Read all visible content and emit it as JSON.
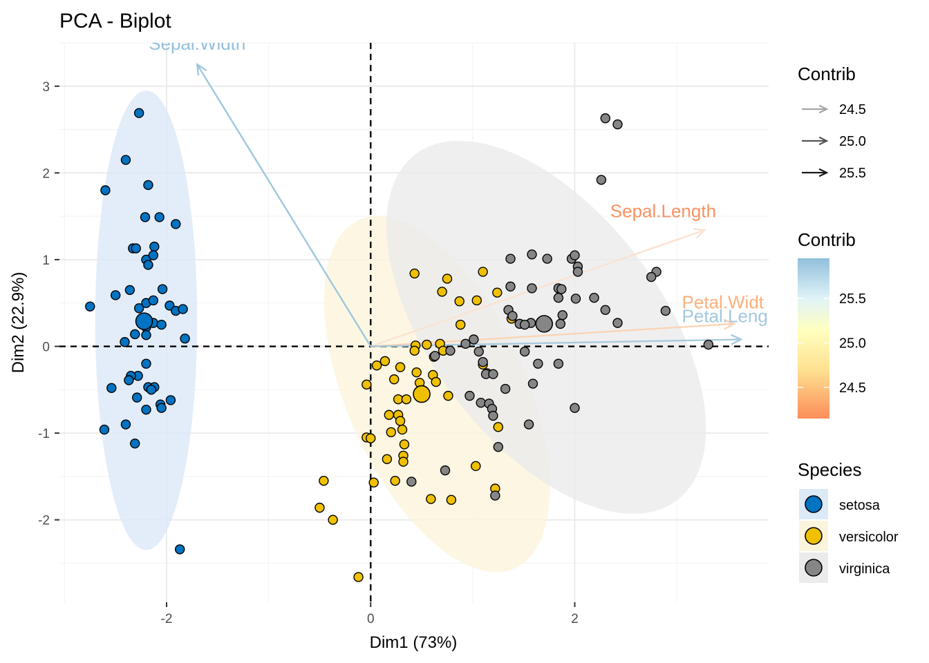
{
  "chart_data": {
    "type": "scatter",
    "title": "PCA - Biplot",
    "xlabel": "Dim1 (73%)",
    "ylabel": "Dim2 (22.9%)",
    "xlim": [
      -3.05,
      3.9
    ],
    "ylim": [
      -2.95,
      3.5
    ],
    "x_ticks": [
      {
        "value": -2,
        "label": "-2"
      },
      {
        "value": 0,
        "label": "0"
      },
      {
        "value": 2,
        "label": "2"
      }
    ],
    "y_ticks": [
      {
        "value": -2,
        "label": "-2"
      },
      {
        "value": -1,
        "label": "-1"
      },
      {
        "value": 0,
        "label": "0"
      },
      {
        "value": 1,
        "label": "1"
      },
      {
        "value": 2,
        "label": "2"
      },
      {
        "value": 3,
        "label": "3"
      }
    ],
    "grid": true,
    "reference_lines": {
      "x": 0,
      "y": 0,
      "style": "dashed"
    },
    "series": [
      {
        "name": "setosa",
        "color": "#0073C2",
        "centroid": [
          -2.22,
          0.29
        ],
        "ellipse": {
          "cx": -2.2,
          "cy": 0.3,
          "rx": 0.5,
          "ry": 2.65,
          "angle": 0,
          "fill": "#dce9f7"
        },
        "points": [
          [
            -2.27,
            2.69
          ],
          [
            -2.4,
            2.15
          ],
          [
            -2.6,
            1.8
          ],
          [
            -2.18,
            1.86
          ],
          [
            -2.21,
            1.49
          ],
          [
            -2.07,
            1.49
          ],
          [
            -1.91,
            1.41
          ],
          [
            -2.33,
            1.13
          ],
          [
            -2.3,
            1.13
          ],
          [
            -2.12,
            1.15
          ],
          [
            -2.2,
            1.0
          ],
          [
            -2.13,
            1.05
          ],
          [
            -2.18,
            0.94
          ],
          [
            -2.75,
            0.46
          ],
          [
            -2.5,
            0.59
          ],
          [
            -2.36,
            0.65
          ],
          [
            -2.04,
            0.66
          ],
          [
            -2.27,
            0.44
          ],
          [
            -2.2,
            0.5
          ],
          [
            -2.13,
            0.53
          ],
          [
            -1.97,
            0.47
          ],
          [
            -1.91,
            0.41
          ],
          [
            -1.84,
            0.43
          ],
          [
            -2.24,
            0.29
          ],
          [
            -2.25,
            0.3
          ],
          [
            -2.2,
            0.26
          ],
          [
            -2.13,
            0.27
          ],
          [
            -2.05,
            0.25
          ],
          [
            -2.2,
            0.22
          ],
          [
            -2.31,
            0.14
          ],
          [
            -2.2,
            0.13
          ],
          [
            -2.41,
            0.05
          ],
          [
            -1.82,
            0.09
          ],
          [
            -2.2,
            -0.2
          ],
          [
            -2.28,
            -0.34
          ],
          [
            -2.35,
            -0.34
          ],
          [
            -2.37,
            -0.39
          ],
          [
            -2.18,
            -0.47
          ],
          [
            -2.12,
            -0.47
          ],
          [
            -2.54,
            -0.48
          ],
          [
            -2.15,
            -0.5
          ],
          [
            -2.29,
            -0.59
          ],
          [
            -2.06,
            -0.67
          ],
          [
            -1.96,
            -0.62
          ],
          [
            -2.05,
            -0.71
          ],
          [
            -2.2,
            -0.73
          ],
          [
            -2.4,
            -0.9
          ],
          [
            -2.61,
            -0.96
          ],
          [
            -2.31,
            -1.12
          ],
          [
            -1.87,
            -2.34
          ]
        ]
      },
      {
        "name": "versicolor",
        "color": "#EFC000",
        "centroid": [
          0.5,
          -0.55
        ],
        "ellipse": {
          "cx": 0.65,
          "cy": -0.55,
          "rx": 0.88,
          "ry": 2.2,
          "angle": 24,
          "fill": "#fbf4dc"
        },
        "points": [
          [
            0.43,
            0.84
          ],
          [
            0.75,
            0.78
          ],
          [
            1.1,
            0.86
          ],
          [
            0.7,
            0.63
          ],
          [
            1.24,
            0.62
          ],
          [
            0.87,
            0.52
          ],
          [
            1.04,
            0.53
          ],
          [
            1.38,
            0.32
          ],
          [
            0.88,
            0.25
          ],
          [
            0.44,
            0.01
          ],
          [
            0.55,
            0.02
          ],
          [
            0.68,
            0.03
          ],
          [
            0.43,
            -0.05
          ],
          [
            0.71,
            -0.05
          ],
          [
            0.62,
            -0.12
          ],
          [
            0.14,
            -0.17
          ],
          [
            0.06,
            -0.22
          ],
          [
            1.1,
            -0.21
          ],
          [
            0.29,
            -0.24
          ],
          [
            0.45,
            -0.3
          ],
          [
            0.61,
            -0.33
          ],
          [
            1.14,
            -0.31
          ],
          [
            0.23,
            -0.38
          ],
          [
            0.48,
            -0.42
          ],
          [
            0.64,
            -0.41
          ],
          [
            -0.04,
            -0.44
          ],
          [
            0.27,
            -0.61
          ],
          [
            0.35,
            -0.61
          ],
          [
            0.76,
            -0.57
          ],
          [
            0.51,
            -0.55
          ],
          [
            0.18,
            -0.79
          ],
          [
            0.27,
            -0.79
          ],
          [
            0.29,
            -0.86
          ],
          [
            0.2,
            -0.99
          ],
          [
            0.31,
            -0.96
          ],
          [
            1.25,
            -0.93
          ],
          [
            -0.04,
            -1.05
          ],
          [
            0.0,
            -1.06
          ],
          [
            0.33,
            -1.13
          ],
          [
            0.32,
            -1.26
          ],
          [
            0.16,
            -1.3
          ],
          [
            0.32,
            -1.33
          ],
          [
            1.03,
            -1.38
          ],
          [
            0.03,
            -1.57
          ],
          [
            0.24,
            -1.55
          ],
          [
            -0.46,
            -1.55
          ],
          [
            0.59,
            -1.76
          ],
          [
            0.79,
            -1.77
          ],
          [
            1.22,
            -1.64
          ],
          [
            -0.5,
            -1.86
          ],
          [
            -0.37,
            -2.0
          ],
          [
            -0.12,
            -2.66
          ]
        ]
      },
      {
        "name": "virginica",
        "color": "#868686",
        "centroid": [
          1.7,
          0.26
        ],
        "ellipse": {
          "cx": 1.72,
          "cy": 0.22,
          "rx": 1.13,
          "ry": 2.5,
          "angle": 37,
          "fill": "#ebebeb"
        },
        "points": [
          [
            2.3,
            2.63
          ],
          [
            2.42,
            2.56
          ],
          [
            2.26,
            1.92
          ],
          [
            1.58,
            1.06
          ],
          [
            1.73,
            1.01
          ],
          [
            1.97,
            1.01
          ],
          [
            2.0,
            1.05
          ],
          [
            1.37,
            1.01
          ],
          [
            2.03,
            0.92
          ],
          [
            2.03,
            0.86
          ],
          [
            2.8,
            0.86
          ],
          [
            2.75,
            0.8
          ],
          [
            1.84,
            0.67
          ],
          [
            1.37,
            0.69
          ],
          [
            1.58,
            0.67
          ],
          [
            1.87,
            0.66
          ],
          [
            1.84,
            0.56
          ],
          [
            2.01,
            0.55
          ],
          [
            2.19,
            0.56
          ],
          [
            1.35,
            0.42
          ],
          [
            2.3,
            0.42
          ],
          [
            2.89,
            0.41
          ],
          [
            1.39,
            0.35
          ],
          [
            1.88,
            0.36
          ],
          [
            1.57,
            0.27
          ],
          [
            1.46,
            0.26
          ],
          [
            1.51,
            0.25
          ],
          [
            1.86,
            0.26
          ],
          [
            2.42,
            0.27
          ],
          [
            1.69,
            0.29
          ],
          [
            3.31,
            0.02
          ],
          [
            1.51,
            -0.06
          ],
          [
            0.78,
            -0.05
          ],
          [
            1.01,
            0.08
          ],
          [
            0.93,
            0.03
          ],
          [
            0.63,
            -0.11
          ],
          [
            1.06,
            -0.06
          ],
          [
            1.1,
            -0.18
          ],
          [
            1.59,
            -0.43
          ],
          [
            1.84,
            -0.2
          ],
          [
            1.64,
            -0.2
          ],
          [
            1.13,
            -0.32
          ],
          [
            1.2,
            -0.32
          ],
          [
            1.32,
            -0.49
          ],
          [
            0.97,
            -0.57
          ],
          [
            1.08,
            -0.65
          ],
          [
            1.16,
            -0.66
          ],
          [
            1.19,
            -0.72
          ],
          [
            1.2,
            -0.8
          ],
          [
            1.55,
            -0.9
          ],
          [
            2.0,
            -0.71
          ],
          [
            1.25,
            -1.16
          ],
          [
            0.73,
            -1.43
          ],
          [
            1.22,
            -1.72
          ],
          [
            0.4,
            -1.56
          ]
        ]
      }
    ],
    "variables": [
      {
        "name": "Sepal.Width",
        "label": "Sepal.Width",
        "x": -1.7,
        "y": 3.25,
        "contrib": 25.8,
        "color": "#9ec7dd",
        "label_x": -1.7,
        "label_y": 3.42
      },
      {
        "name": "Sepal.Length",
        "label": "Sepal.Length",
        "x": 3.27,
        "y": 1.34,
        "contrib": 24.3,
        "color": "#fbe2d1",
        "label_x": 3.25,
        "label_y": 1.49
      },
      {
        "name": "Petal.Width",
        "label": "Petal.Widt",
        "x": 3.56,
        "y": 0.26,
        "contrib": 24.6,
        "color": "#fbd4b5",
        "label_x": 3.05,
        "label_y": 0.44
      },
      {
        "name": "Petal.Length",
        "label": "Petal.Leng",
        "x": 3.63,
        "y": 0.08,
        "contrib": 25.9,
        "color": "#a8cbdd",
        "label_x": 3.05,
        "label_y": 0.28
      }
    ],
    "legends": {
      "contrib_arrows": {
        "title": "Contrib",
        "entries": [
          {
            "label": "24.5",
            "color": "#a6a6a6"
          },
          {
            "label": "25.0",
            "color": "#555555"
          },
          {
            "label": "25.5",
            "color": "#1a1a1a"
          }
        ]
      },
      "contrib_gradient": {
        "title": "Contrib",
        "range": [
          24.15,
          25.95
        ],
        "ticks": [
          {
            "value": 24.5,
            "label": "24.5"
          },
          {
            "value": 25.0,
            "label": "25.0"
          },
          {
            "value": 25.5,
            "label": "25.5"
          }
        ],
        "colors": [
          "#fc8d59",
          "#fee090",
          "#ffffbf",
          "#e0f3f8",
          "#91bfdb"
        ]
      },
      "species": {
        "title": "Species",
        "entries": [
          {
            "label": "setosa",
            "color": "#0073C2",
            "bg": "#dce9f7"
          },
          {
            "label": "versicolor",
            "color": "#EFC000",
            "bg": "#fbf4dc"
          },
          {
            "label": "virginica",
            "color": "#868686",
            "bg": "#ebebeb"
          }
        ]
      }
    }
  }
}
